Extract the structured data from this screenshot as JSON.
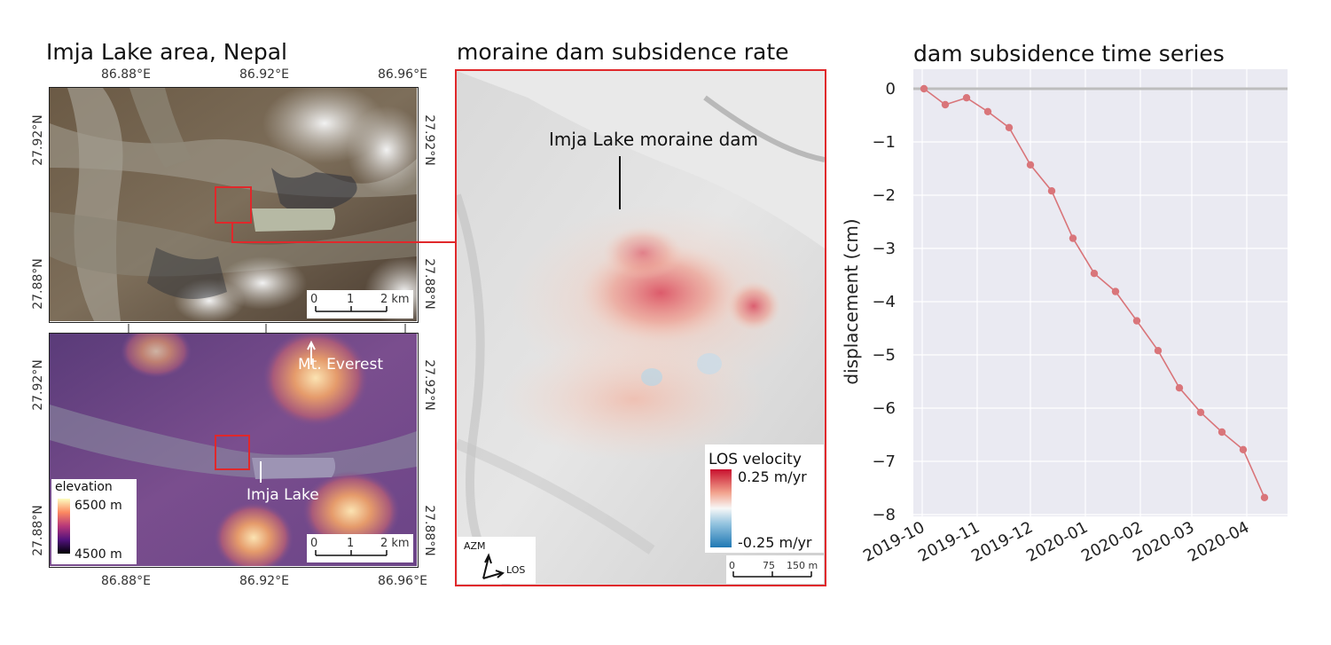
{
  "panel_left": {
    "title": "Imja Lake area, Nepal",
    "lon_ticks": [
      "86.88°E",
      "86.92°E",
      "86.96°E"
    ],
    "lat_ticks": [
      "27.92°N",
      "27.88°N"
    ],
    "top_map": {
      "scalebar": {
        "labels": [
          "0",
          "1",
          "2 km"
        ]
      }
    },
    "bottom_map": {
      "labels": {
        "everest": "Mt. Everest",
        "lake": "Imja Lake"
      },
      "colorbar": {
        "title": "elevation",
        "max": "6500 m",
        "min": "4500 m"
      },
      "scalebar": {
        "labels": [
          "0",
          "1",
          "2 km"
        ]
      }
    }
  },
  "panel_middle": {
    "title": "moraine dam subsidence rate",
    "annotation": "Imja Lake moraine dam",
    "colorbar": {
      "title": "LOS velocity",
      "max": "0.25 m/yr",
      "min": "-0.25 m/yr"
    },
    "scalebar": {
      "labels": [
        "0",
        "75",
        "150 m"
      ]
    },
    "arrows": {
      "azm": "AZM",
      "los": "LOS"
    }
  },
  "colors": {
    "highlight": "#e0282b",
    "series": "#d9757a",
    "plot_bg": "#eaeaf2"
  },
  "chart_data": {
    "type": "line",
    "title": "dam subsidence time series",
    "xlabel": "",
    "ylabel": "displacement (cm)",
    "ylim": [
      -8,
      0
    ],
    "yticks": [
      0,
      -1,
      -2,
      -3,
      -4,
      -5,
      -6,
      -7,
      -8
    ],
    "ytick_labels": [
      "0",
      "−1",
      "−2",
      "−3",
      "−4",
      "−5",
      "−6",
      "−7",
      "−8"
    ],
    "xlim": [
      "2019-09-26",
      "2020-04-24"
    ],
    "xticks": [
      "2019-10-01",
      "2019-11-01",
      "2019-12-01",
      "2020-01-01",
      "2020-02-01",
      "2020-03-01",
      "2020-04-01"
    ],
    "xtick_labels": [
      "2019-10",
      "2019-11",
      "2019-12",
      "2020-01",
      "2020-02",
      "2020-03",
      "2020-04"
    ],
    "series": [
      {
        "name": "dam subsidence",
        "x": [
          "2019-10-02",
          "2019-10-14",
          "2019-10-26",
          "2019-11-07",
          "2019-11-19",
          "2019-12-01",
          "2019-12-13",
          "2019-12-25",
          "2020-01-06",
          "2020-01-18",
          "2020-01-30",
          "2020-02-11",
          "2020-02-23",
          "2020-03-06",
          "2020-03-18",
          "2020-03-30",
          "2020-04-11"
        ],
        "y": [
          0.0,
          -0.3,
          -0.17,
          -0.43,
          -0.73,
          -1.43,
          -1.92,
          -2.81,
          -3.47,
          -3.81,
          -4.36,
          -4.92,
          -5.62,
          -6.08,
          -6.45,
          -6.78,
          -7.68
        ]
      }
    ],
    "zero_line": 0,
    "grid": true
  }
}
